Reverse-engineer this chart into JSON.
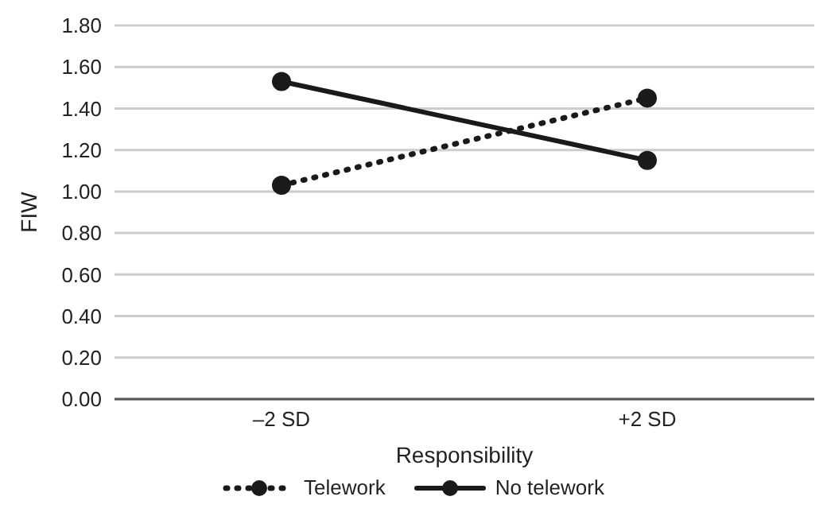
{
  "chart_data": {
    "type": "line",
    "xlabel": "Responsibility",
    "ylabel": "FIW",
    "categories": [
      "–2 SD",
      "+2 SD"
    ],
    "series": [
      {
        "name": "Telework",
        "color": "#1a1a1a",
        "values": [
          1.03,
          1.45
        ],
        "line_style": "dotted"
      },
      {
        "name": "No telework",
        "color": "#1a1a1a",
        "values": [
          1.53,
          1.15
        ],
        "line_style": "solid"
      }
    ],
    "ylim": [
      0,
      1.8
    ],
    "yticks": [
      {
        "value": 0,
        "label": "0.00"
      },
      {
        "value": 0.2,
        "label": "0.20"
      },
      {
        "value": 0.4,
        "label": "0.40"
      },
      {
        "value": 0.6,
        "label": "0.60"
      },
      {
        "value": 0.8,
        "label": "0.80"
      },
      {
        "value": 1.0,
        "label": "1.00"
      },
      {
        "value": 1.2,
        "label": "1.20"
      },
      {
        "value": 1.4,
        "label": "1.40"
      },
      {
        "value": 1.6,
        "label": "1.60"
      },
      {
        "value": 1.8,
        "label": "1.80"
      }
    ],
    "grid": "y",
    "legend": "bottom",
    "marker": "circle"
  }
}
